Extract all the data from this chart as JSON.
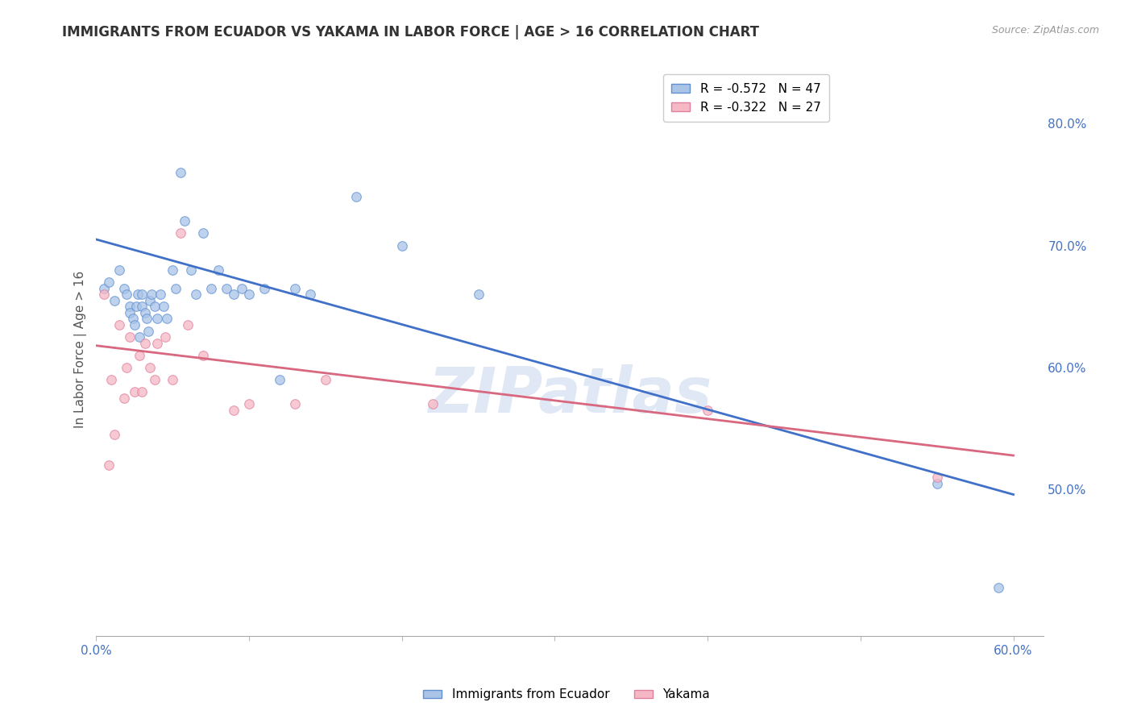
{
  "title": "IMMIGRANTS FROM ECUADOR VS YAKAMA IN LABOR FORCE | AGE > 16 CORRELATION CHART",
  "source": "Source: ZipAtlas.com",
  "ylabel": "In Labor Force | Age > 16",
  "xlim": [
    0.0,
    0.62
  ],
  "ylim": [
    0.38,
    0.85
  ],
  "xtick_labels": [
    "0.0%",
    "",
    "",
    "",
    "",
    "",
    "60.0%"
  ],
  "xtick_vals": [
    0.0,
    0.1,
    0.2,
    0.3,
    0.4,
    0.5,
    0.6
  ],
  "ytick_labels": [
    "80.0%",
    "70.0%",
    "60.0%",
    "50.0%"
  ],
  "ytick_vals": [
    0.8,
    0.7,
    0.6,
    0.5
  ],
  "legend_blue_label": "R = -0.572   N = 47",
  "legend_pink_label": "R = -0.322   N = 27",
  "blue_fill": "#aac4e8",
  "pink_fill": "#f5b8c4",
  "blue_edge": "#6090d0",
  "pink_edge": "#e080a0",
  "blue_line_color": "#4070c8",
  "pink_line_color": "#d86880",
  "watermark": "ZIPatlas",
  "blue_scatter_x": [
    0.005,
    0.008,
    0.012,
    0.015,
    0.018,
    0.02,
    0.022,
    0.022,
    0.024,
    0.025,
    0.026,
    0.027,
    0.028,
    0.03,
    0.03,
    0.032,
    0.033,
    0.034,
    0.035,
    0.036,
    0.038,
    0.04,
    0.042,
    0.044,
    0.046,
    0.05,
    0.052,
    0.055,
    0.058,
    0.062,
    0.065,
    0.07,
    0.075,
    0.08,
    0.085,
    0.09,
    0.095,
    0.1,
    0.11,
    0.12,
    0.13,
    0.14,
    0.17,
    0.2,
    0.25,
    0.55,
    0.59
  ],
  "blue_scatter_y": [
    0.665,
    0.67,
    0.655,
    0.68,
    0.665,
    0.66,
    0.65,
    0.645,
    0.64,
    0.635,
    0.65,
    0.66,
    0.625,
    0.66,
    0.65,
    0.645,
    0.64,
    0.63,
    0.655,
    0.66,
    0.65,
    0.64,
    0.66,
    0.65,
    0.64,
    0.68,
    0.665,
    0.76,
    0.72,
    0.68,
    0.66,
    0.71,
    0.665,
    0.68,
    0.665,
    0.66,
    0.665,
    0.66,
    0.665,
    0.59,
    0.665,
    0.66,
    0.74,
    0.7,
    0.66,
    0.505,
    0.42
  ],
  "pink_scatter_x": [
    0.005,
    0.008,
    0.01,
    0.012,
    0.015,
    0.018,
    0.02,
    0.022,
    0.025,
    0.028,
    0.03,
    0.032,
    0.035,
    0.038,
    0.04,
    0.045,
    0.05,
    0.055,
    0.06,
    0.07,
    0.09,
    0.1,
    0.13,
    0.15,
    0.22,
    0.4,
    0.55
  ],
  "pink_scatter_y": [
    0.66,
    0.52,
    0.59,
    0.545,
    0.635,
    0.575,
    0.6,
    0.625,
    0.58,
    0.61,
    0.58,
    0.62,
    0.6,
    0.59,
    0.62,
    0.625,
    0.59,
    0.71,
    0.635,
    0.61,
    0.565,
    0.57,
    0.57,
    0.59,
    0.57,
    0.565,
    0.51
  ],
  "blue_line_x": [
    0.0,
    0.6
  ],
  "blue_line_y": [
    0.705,
    0.496
  ],
  "pink_line_x": [
    0.0,
    0.6
  ],
  "pink_line_y": [
    0.618,
    0.528
  ],
  "marker_size": 70,
  "background_color": "#ffffff",
  "grid_color": "#cccccc"
}
